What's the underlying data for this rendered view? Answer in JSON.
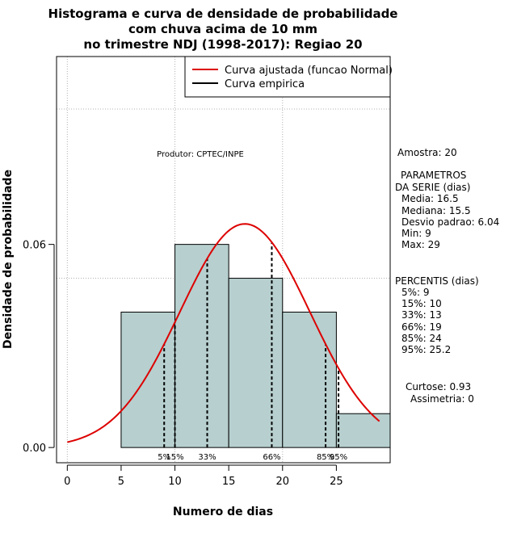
{
  "chart_data": {
    "type": "bar",
    "title_lines": [
      "Histograma e curva de densidade de probabilidade",
      "com chuva acima de 10 mm",
      "no trimestre NDJ (1998-2017): Regiao 20"
    ],
    "xlabel": "Numero de dias",
    "ylabel": "Densidade de probabilidade",
    "xlim": [
      -1,
      30
    ],
    "ylim": [
      -0.0045,
      0.1155
    ],
    "x_ticks": [
      "0",
      "5",
      "10",
      "15",
      "20",
      "25"
    ],
    "y_ticks": [
      "0.00",
      "0.06"
    ],
    "x_grid": [
      0,
      10,
      20
    ],
    "y_grid": [
      0.05,
      0.1
    ],
    "bins": [
      {
        "from": 5,
        "to": 10,
        "density": 0.04
      },
      {
        "from": 10,
        "to": 15,
        "density": 0.06
      },
      {
        "from": 15,
        "to": 20,
        "density": 0.05
      },
      {
        "from": 20,
        "to": 25,
        "density": 0.04
      },
      {
        "from": 25,
        "to": 30,
        "density": 0.01
      }
    ],
    "bar_color": "#b7cfcf",
    "normal_fit": {
      "mean": 16.5,
      "sd": 6.04,
      "x_from": 0,
      "x_to": 29,
      "color": "#dd0000"
    },
    "percentile_lines": [
      {
        "label": "5%",
        "x": 9
      },
      {
        "label": "15%",
        "x": 10
      },
      {
        "label": "33%",
        "x": 13
      },
      {
        "label": "66%",
        "x": 19
      },
      {
        "label": "85%",
        "x": 24
      },
      {
        "label": "95%",
        "x": 25.2
      }
    ],
    "legend": {
      "position": "top-right",
      "items": [
        {
          "label": "Curva ajustada (funcao Normal)",
          "color": "#dd0000"
        },
        {
          "label": "Curva empirica",
          "color": "#000000"
        }
      ]
    },
    "annotation": "Produtor: CPTEC/INPE"
  },
  "stats": {
    "amostra": "Amostra: 20",
    "param_title_1": "PARAMETROS",
    "param_title_2": "DA SERIE (dias)",
    "media": "Media: 16.5",
    "mediana": "Mediana: 15.5",
    "desvio": "Desvio padrao: 6.04",
    "min": "Min: 9",
    "max": "Max: 29",
    "perc_title": "PERCENTIS (dias)",
    "p5": "5%: 9",
    "p15": "15%: 10",
    "p33": "33%: 13",
    "p66": "66%: 19",
    "p85": "85%: 24",
    "p95": "95%: 25.2",
    "curtose": "Curtose: 0.93",
    "assimetria": "Assimetria: 0"
  }
}
